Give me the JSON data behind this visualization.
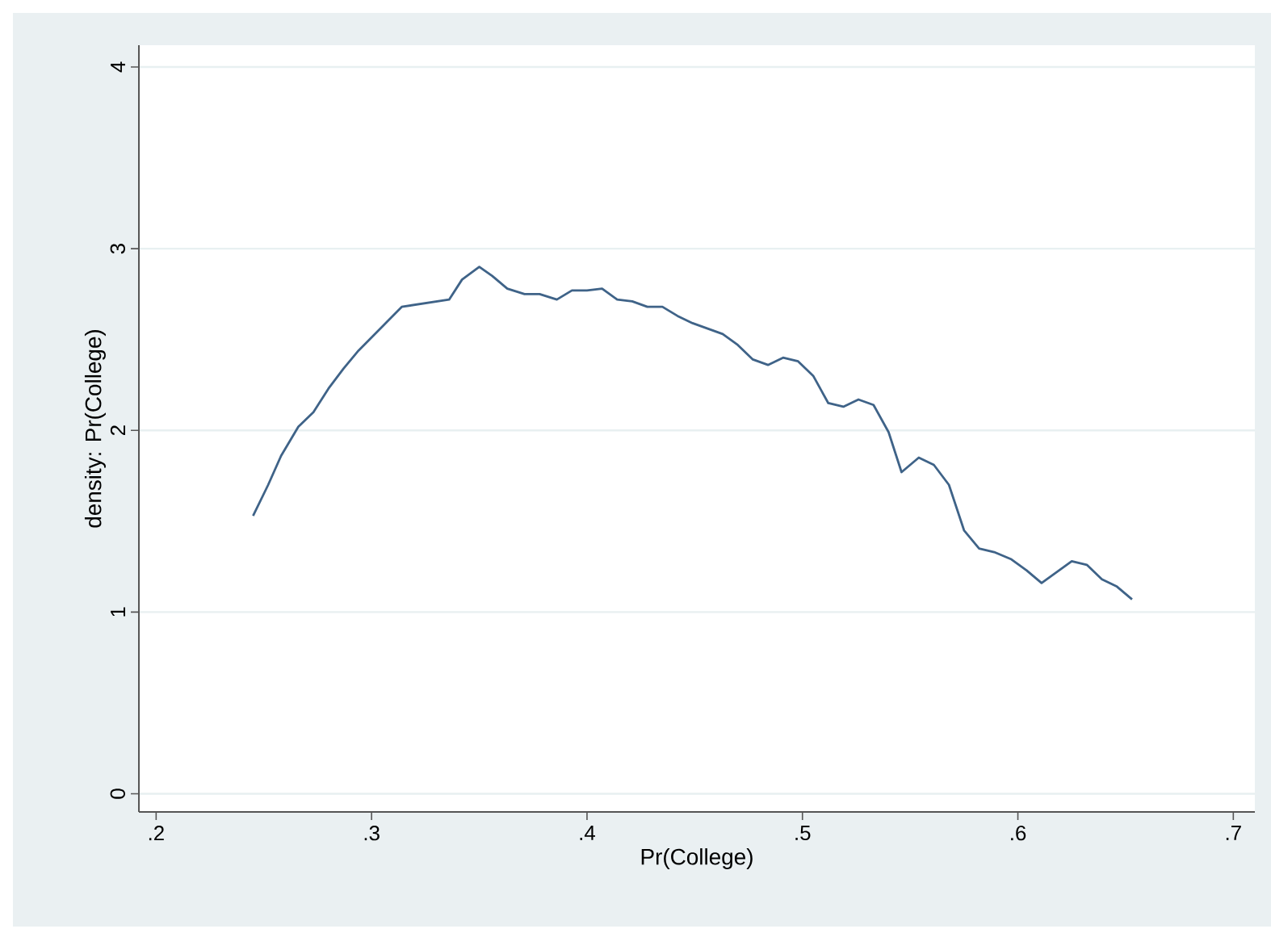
{
  "chart_data": {
    "type": "line",
    "xlabel": "Pr(College)",
    "ylabel": "density: Pr(College)",
    "x": [
      0.245,
      0.252,
      0.258,
      0.266,
      0.273,
      0.28,
      0.287,
      0.294,
      0.314,
      0.336,
      0.342,
      0.35,
      0.356,
      0.363,
      0.371,
      0.378,
      0.386,
      0.393,
      0.4,
      0.407,
      0.414,
      0.421,
      0.428,
      0.435,
      0.442,
      0.449,
      0.456,
      0.463,
      0.47,
      0.477,
      0.484,
      0.491,
      0.498,
      0.505,
      0.512,
      0.519,
      0.526,
      0.533,
      0.54,
      0.546,
      0.554,
      0.561,
      0.568,
      0.575,
      0.582,
      0.589,
      0.597,
      0.604,
      0.611,
      0.618,
      0.625,
      0.632,
      0.639,
      0.646,
      0.653
    ],
    "series": [
      {
        "color": "#3f6388",
        "values": [
          1.53,
          1.7,
          1.86,
          2.02,
          2.1,
          2.23,
          2.34,
          2.44,
          2.68,
          2.72,
          2.83,
          2.9,
          2.85,
          2.78,
          2.75,
          2.75,
          2.72,
          2.77,
          2.77,
          2.78,
          2.72,
          2.71,
          2.68,
          2.68,
          2.63,
          2.59,
          2.56,
          2.53,
          2.47,
          2.39,
          2.36,
          2.4,
          2.38,
          2.3,
          2.15,
          2.13,
          2.17,
          2.14,
          1.99,
          1.77,
          1.85,
          1.81,
          1.7,
          1.45,
          1.35,
          1.33,
          1.29,
          1.23,
          1.16,
          1.22,
          1.28,
          1.26,
          1.18,
          1.14,
          1.07
        ]
      }
    ],
    "xlim": [
      0.192,
      0.71
    ],
    "ylim": [
      -0.1,
      4.12
    ],
    "xticks": [
      {
        "value": 0.2,
        "label": ".2"
      },
      {
        "value": 0.3,
        "label": ".3"
      },
      {
        "value": 0.4,
        "label": ".4"
      },
      {
        "value": 0.5,
        "label": ".5"
      },
      {
        "value": 0.6,
        "label": ".6"
      },
      {
        "value": 0.7,
        "label": ".7"
      }
    ],
    "yticks": [
      0,
      1,
      2,
      3,
      4
    ],
    "grid": "y",
    "marker": "none",
    "line_style": "solid"
  }
}
